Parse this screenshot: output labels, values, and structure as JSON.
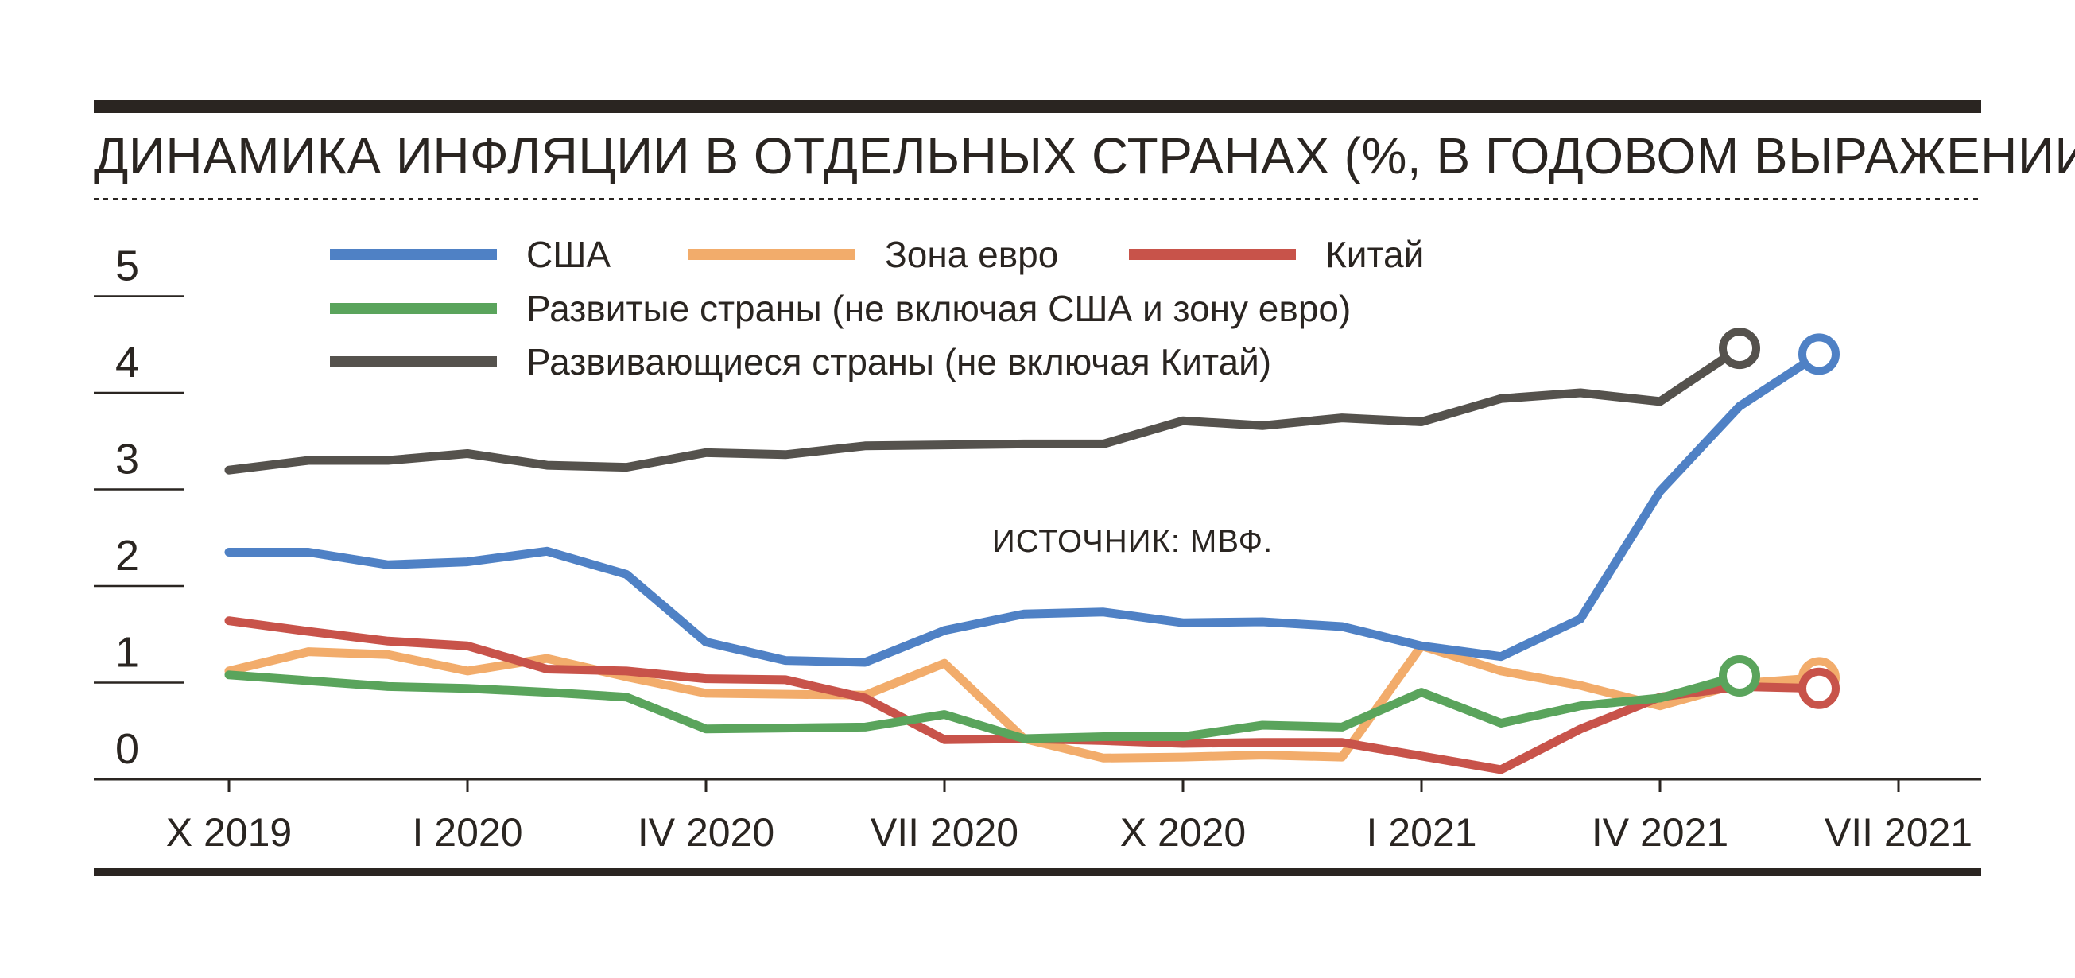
{
  "chart_data": {
    "type": "line",
    "title": "ДИНАМИКА ИНФЛЯЦИИ В ОТДЕЛЬНЫХ СТРАНАХ (%, В ГОДОВОМ ВЫРАЖЕНИИ)",
    "source": "ИСТОЧНИК: МВФ.",
    "ylim": [
      0,
      5
    ],
    "yticks": [
      "0",
      "1",
      "2",
      "3",
      "4",
      "5"
    ],
    "xlabels": [
      "X 2019",
      "I 2020",
      "IV 2020",
      "VII 2020",
      "X 2020",
      "I 2021",
      "IV 2021",
      "VII 2021"
    ],
    "grid": false,
    "legend_position": "top",
    "series": [
      {
        "name": "США",
        "color": "#4f81c5",
        "end_marker": true,
        "points": [
          [
            0,
            2.35
          ],
          [
            1,
            2.35
          ],
          [
            2,
            2.22
          ],
          [
            3,
            2.25
          ],
          [
            4,
            2.36
          ],
          [
            5,
            2.12
          ],
          [
            6,
            1.42
          ],
          [
            7,
            1.23
          ],
          [
            8,
            1.21
          ],
          [
            9,
            1.54
          ],
          [
            10,
            1.71
          ],
          [
            11,
            1.73
          ],
          [
            12,
            1.62
          ],
          [
            13,
            1.63
          ],
          [
            14,
            1.58
          ],
          [
            15,
            1.38
          ],
          [
            16,
            1.27
          ],
          [
            17,
            1.66
          ],
          [
            18,
            2.98
          ],
          [
            19,
            3.86
          ],
          [
            20,
            4.4
          ]
        ]
      },
      {
        "name": "Зона евро",
        "color": "#f2ac6b",
        "end_marker": true,
        "points": [
          [
            0,
            1.12
          ],
          [
            1,
            1.32
          ],
          [
            2,
            1.29
          ],
          [
            3,
            1.12
          ],
          [
            4,
            1.25
          ],
          [
            5,
            1.06
          ],
          [
            6,
            0.89
          ],
          [
            7,
            0.88
          ],
          [
            8,
            0.87
          ],
          [
            9,
            1.2
          ],
          [
            10,
            0.42
          ],
          [
            11,
            0.22
          ],
          [
            12,
            0.23
          ],
          [
            13,
            0.25
          ],
          [
            14,
            0.23
          ],
          [
            15,
            1.38
          ],
          [
            16,
            1.12
          ],
          [
            17,
            0.97
          ],
          [
            18,
            0.76
          ],
          [
            19,
            0.99
          ],
          [
            20,
            1.05
          ]
        ]
      },
      {
        "name": "Китай",
        "color": "#c8534a",
        "end_marker": true,
        "points": [
          [
            0,
            1.64
          ],
          [
            1,
            1.53
          ],
          [
            2,
            1.43
          ],
          [
            3,
            1.38
          ],
          [
            4,
            1.14
          ],
          [
            5,
            1.12
          ],
          [
            6,
            1.04
          ],
          [
            7,
            1.03
          ],
          [
            8,
            0.84
          ],
          [
            9,
            0.41
          ],
          [
            10,
            0.42
          ],
          [
            11,
            0.4
          ],
          [
            12,
            0.37
          ],
          [
            13,
            0.38
          ],
          [
            14,
            0.38
          ],
          [
            15,
            0.24
          ],
          [
            16,
            0.1
          ],
          [
            17,
            0.52
          ],
          [
            18,
            0.85
          ],
          [
            19,
            0.96
          ],
          [
            20,
            0.94
          ]
        ]
      },
      {
        "name": "Развитые страны (не включая США и зону евро)",
        "color": "#5aa45c",
        "end_marker": true,
        "points": [
          [
            0,
            1.08
          ],
          [
            1,
            1.02
          ],
          [
            2,
            0.96
          ],
          [
            3,
            0.94
          ],
          [
            4,
            0.9
          ],
          [
            5,
            0.85
          ],
          [
            6,
            0.52
          ],
          [
            7,
            0.53
          ],
          [
            8,
            0.54
          ],
          [
            9,
            0.67
          ],
          [
            10,
            0.42
          ],
          [
            11,
            0.44
          ],
          [
            12,
            0.44
          ],
          [
            13,
            0.56
          ],
          [
            14,
            0.54
          ],
          [
            15,
            0.9
          ],
          [
            16,
            0.58
          ],
          [
            17,
            0.76
          ],
          [
            18,
            0.84
          ],
          [
            19,
            1.07
          ]
        ]
      },
      {
        "name": "Развивающиеся страны (не включая Китай)",
        "color": "#55524d",
        "end_marker": true,
        "points": [
          [
            0,
            3.2
          ],
          [
            1,
            3.3
          ],
          [
            2,
            3.3
          ],
          [
            3,
            3.37
          ],
          [
            4,
            3.25
          ],
          [
            5,
            3.23
          ],
          [
            6,
            3.38
          ],
          [
            7,
            3.36
          ],
          [
            8,
            3.45
          ],
          [
            9,
            3.46
          ],
          [
            10,
            3.47
          ],
          [
            11,
            3.47
          ],
          [
            12,
            3.71
          ],
          [
            13,
            3.66
          ],
          [
            14,
            3.74
          ],
          [
            15,
            3.7
          ],
          [
            16,
            3.94
          ],
          [
            17,
            4.0
          ],
          [
            18,
            3.91
          ],
          [
            19,
            4.46
          ]
        ]
      }
    ]
  }
}
